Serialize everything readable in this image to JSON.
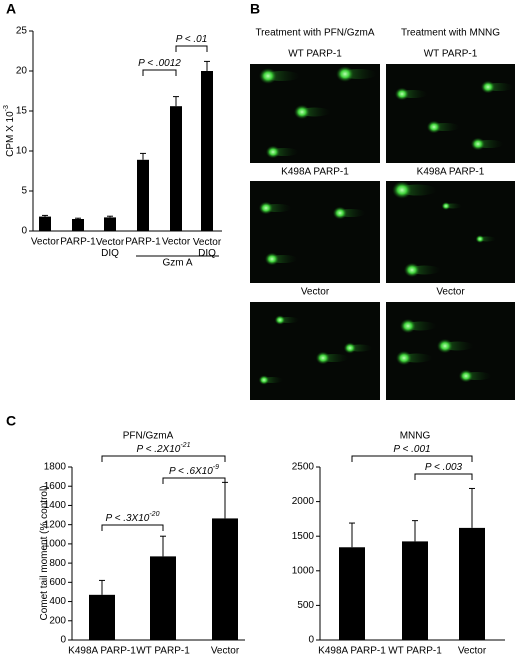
{
  "panel_labels": [
    "A",
    "B",
    "C"
  ],
  "panel_b": {
    "columns": [
      "Treatment with PFN/GzmA",
      "Treatment with MNNG"
    ],
    "rows": [
      [
        "WT PARP-1",
        "WT PARP-1"
      ],
      [
        "K498A PARP-1",
        "K498A PARP-1"
      ],
      [
        "Vector",
        "Vector"
      ]
    ]
  },
  "chart_data": [
    {
      "type": "bar",
      "ylabel": {
        "text": "CPM X 10",
        "sup": "-3"
      },
      "categories": [
        "Vector",
        "PARP-1",
        "Vector DIQ",
        "PARP-1",
        "Vector",
        "Vector DIQ"
      ],
      "values": [
        1.8,
        1.5,
        1.7,
        8.9,
        15.6,
        20.0
      ],
      "errors": [
        0.15,
        0.1,
        0.15,
        0.8,
        1.2,
        1.2
      ],
      "color": "#000000",
      "ylim": [
        0,
        25
      ],
      "yticks": [
        0,
        5,
        10,
        15,
        20,
        25
      ],
      "group_label": "Gzm A",
      "significance": [
        {
          "text": "P < .0012"
        },
        {
          "text": "P < .01"
        }
      ]
    },
    {
      "type": "bar",
      "title": "PFN/GzmA",
      "ylabel": {
        "text": "Comet tail moment (% control)"
      },
      "categories": [
        "K498A PARP-1",
        "WT PARP-1",
        "Vector"
      ],
      "values": [
        470,
        870,
        1265
      ],
      "errors": [
        150,
        210,
        375
      ],
      "color": "#000000",
      "ylim": [
        0,
        1800
      ],
      "yticks": [
        0,
        200,
        400,
        600,
        800,
        1000,
        1200,
        1400,
        1600,
        1800
      ],
      "significance": [
        {
          "text": "P < .2X10",
          "sup": "-21"
        },
        {
          "text": "P < .6X10",
          "sup": "-9"
        },
        {
          "text": "P < .3X10",
          "sup": "-20"
        }
      ]
    },
    {
      "type": "bar",
      "title": "MNNG",
      "categories": [
        "K498A PARP-1",
        "WT PARP-1",
        "Vector"
      ],
      "values": [
        1340,
        1425,
        1620
      ],
      "errors": [
        350,
        300,
        570
      ],
      "color": "#000000",
      "ylim": [
        0,
        2500
      ],
      "yticks": [
        0,
        500,
        1000,
        1500,
        2000,
        2500
      ],
      "significance": [
        {
          "text": "P < .001"
        },
        {
          "text": "P < .003"
        }
      ]
    }
  ]
}
